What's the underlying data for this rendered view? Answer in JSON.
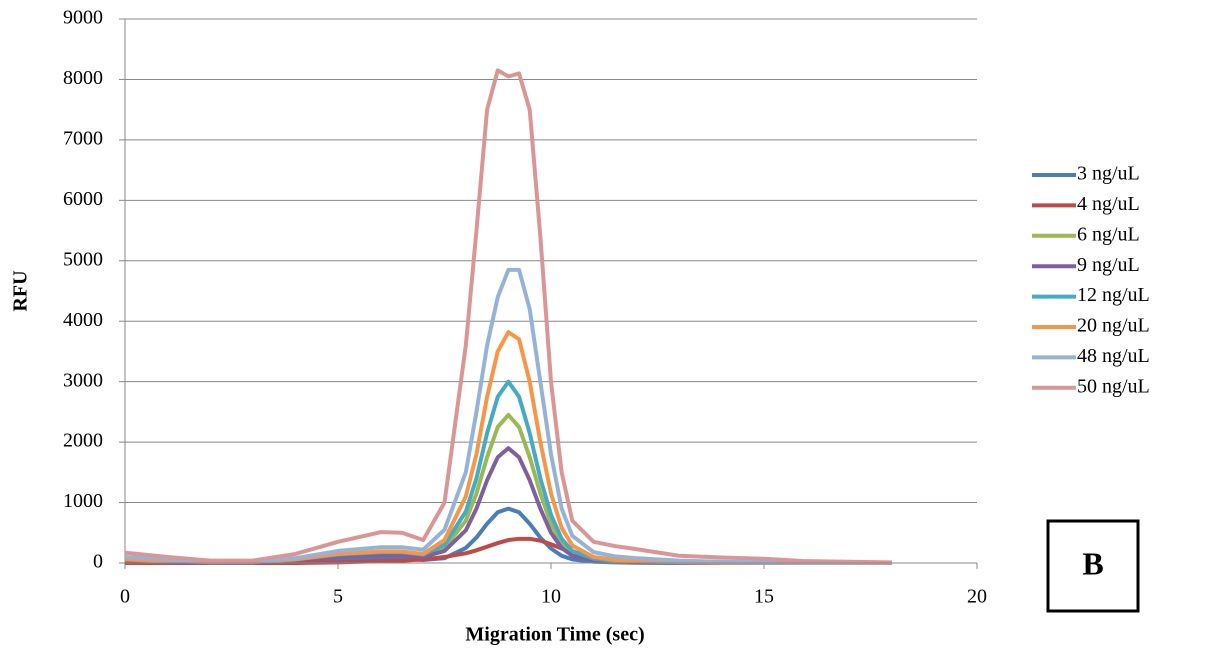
{
  "chart_data": {
    "type": "line",
    "x_label": "Migration Time (sec)",
    "y_label": "RFU",
    "annotation": "B",
    "x": [
      0,
      1,
      2,
      3,
      4,
      5,
      6,
      6.5,
      7,
      7.5,
      8,
      8.25,
      8.5,
      8.75,
      9,
      9.25,
      9.5,
      9.75,
      10,
      10.25,
      10.5,
      11,
      11.5,
      12,
      13,
      14,
      15,
      16,
      17,
      18
    ],
    "series": [
      {
        "name": "3 ng/uL",
        "color": "#4a7ebb",
        "values": [
          0,
          0,
          0,
          0,
          10,
          40,
          70,
          70,
          50,
          80,
          250,
          420,
          650,
          840,
          900,
          840,
          650,
          420,
          240,
          120,
          60,
          20,
          10,
          5,
          0,
          0,
          0,
          0,
          0,
          0
        ]
      },
      {
        "name": "4 ng/uL",
        "color": "#be4b48",
        "values": [
          0,
          0,
          0,
          0,
          0,
          10,
          30,
          40,
          60,
          100,
          160,
          210,
          270,
          330,
          380,
          400,
          400,
          370,
          310,
          240,
          170,
          80,
          40,
          20,
          5,
          0,
          0,
          0,
          0,
          0
        ]
      },
      {
        "name": "6 ng/uL",
        "color": "#98b954",
        "values": [
          50,
          20,
          10,
          10,
          50,
          120,
          160,
          160,
          120,
          250,
          700,
          1150,
          1750,
          2250,
          2450,
          2250,
          1750,
          1150,
          650,
          320,
          160,
          60,
          30,
          20,
          10,
          5,
          5,
          0,
          0,
          0
        ]
      },
      {
        "name": "9 ng/uL",
        "color": "#7d60a0",
        "values": [
          30,
          10,
          5,
          5,
          40,
          100,
          130,
          130,
          100,
          200,
          540,
          900,
          1370,
          1750,
          1900,
          1750,
          1370,
          900,
          500,
          250,
          120,
          50,
          25,
          15,
          5,
          0,
          0,
          0,
          0,
          0
        ]
      },
      {
        "name": "12 ng/uL",
        "color": "#46aac5",
        "values": [
          80,
          40,
          15,
          15,
          60,
          140,
          180,
          180,
          140,
          300,
          850,
          1400,
          2150,
          2750,
          3000,
          2750,
          2150,
          1400,
          800,
          400,
          200,
          70,
          35,
          25,
          10,
          5,
          0,
          0,
          0,
          0
        ]
      },
      {
        "name": "20 ng/uL",
        "color": "#f79646",
        "values": [
          60,
          30,
          15,
          15,
          60,
          150,
          190,
          190,
          150,
          380,
          1100,
          1800,
          2750,
          3500,
          3820,
          3700,
          3000,
          2000,
          1150,
          580,
          290,
          100,
          50,
          30,
          15,
          5,
          5,
          0,
          0,
          0
        ]
      },
      {
        "name": "48 ng/uL",
        "color": "#95b3d7",
        "values": [
          100,
          60,
          20,
          20,
          80,
          200,
          260,
          260,
          220,
          550,
          1500,
          2500,
          3600,
          4400,
          4850,
          4850,
          4200,
          3000,
          1800,
          900,
          450,
          180,
          110,
          80,
          40,
          20,
          10,
          5,
          5,
          5
        ]
      },
      {
        "name": "50 ng/uL",
        "color": "#d99694",
        "values": [
          170,
          100,
          40,
          40,
          150,
          350,
          510,
          500,
          380,
          1000,
          3600,
          5500,
          7500,
          8150,
          8050,
          8100,
          7500,
          5400,
          3000,
          1500,
          700,
          350,
          280,
          230,
          120,
          90,
          70,
          30,
          20,
          10
        ]
      }
    ],
    "xlim": [
      0,
      20
    ],
    "xticks": [
      0,
      5,
      10,
      15,
      20
    ],
    "ylim": [
      0,
      9000
    ],
    "yticks": [
      0,
      1000,
      2000,
      3000,
      4000,
      5000,
      6000,
      7000,
      8000,
      9000
    ],
    "grid": true,
    "legend": "right"
  }
}
